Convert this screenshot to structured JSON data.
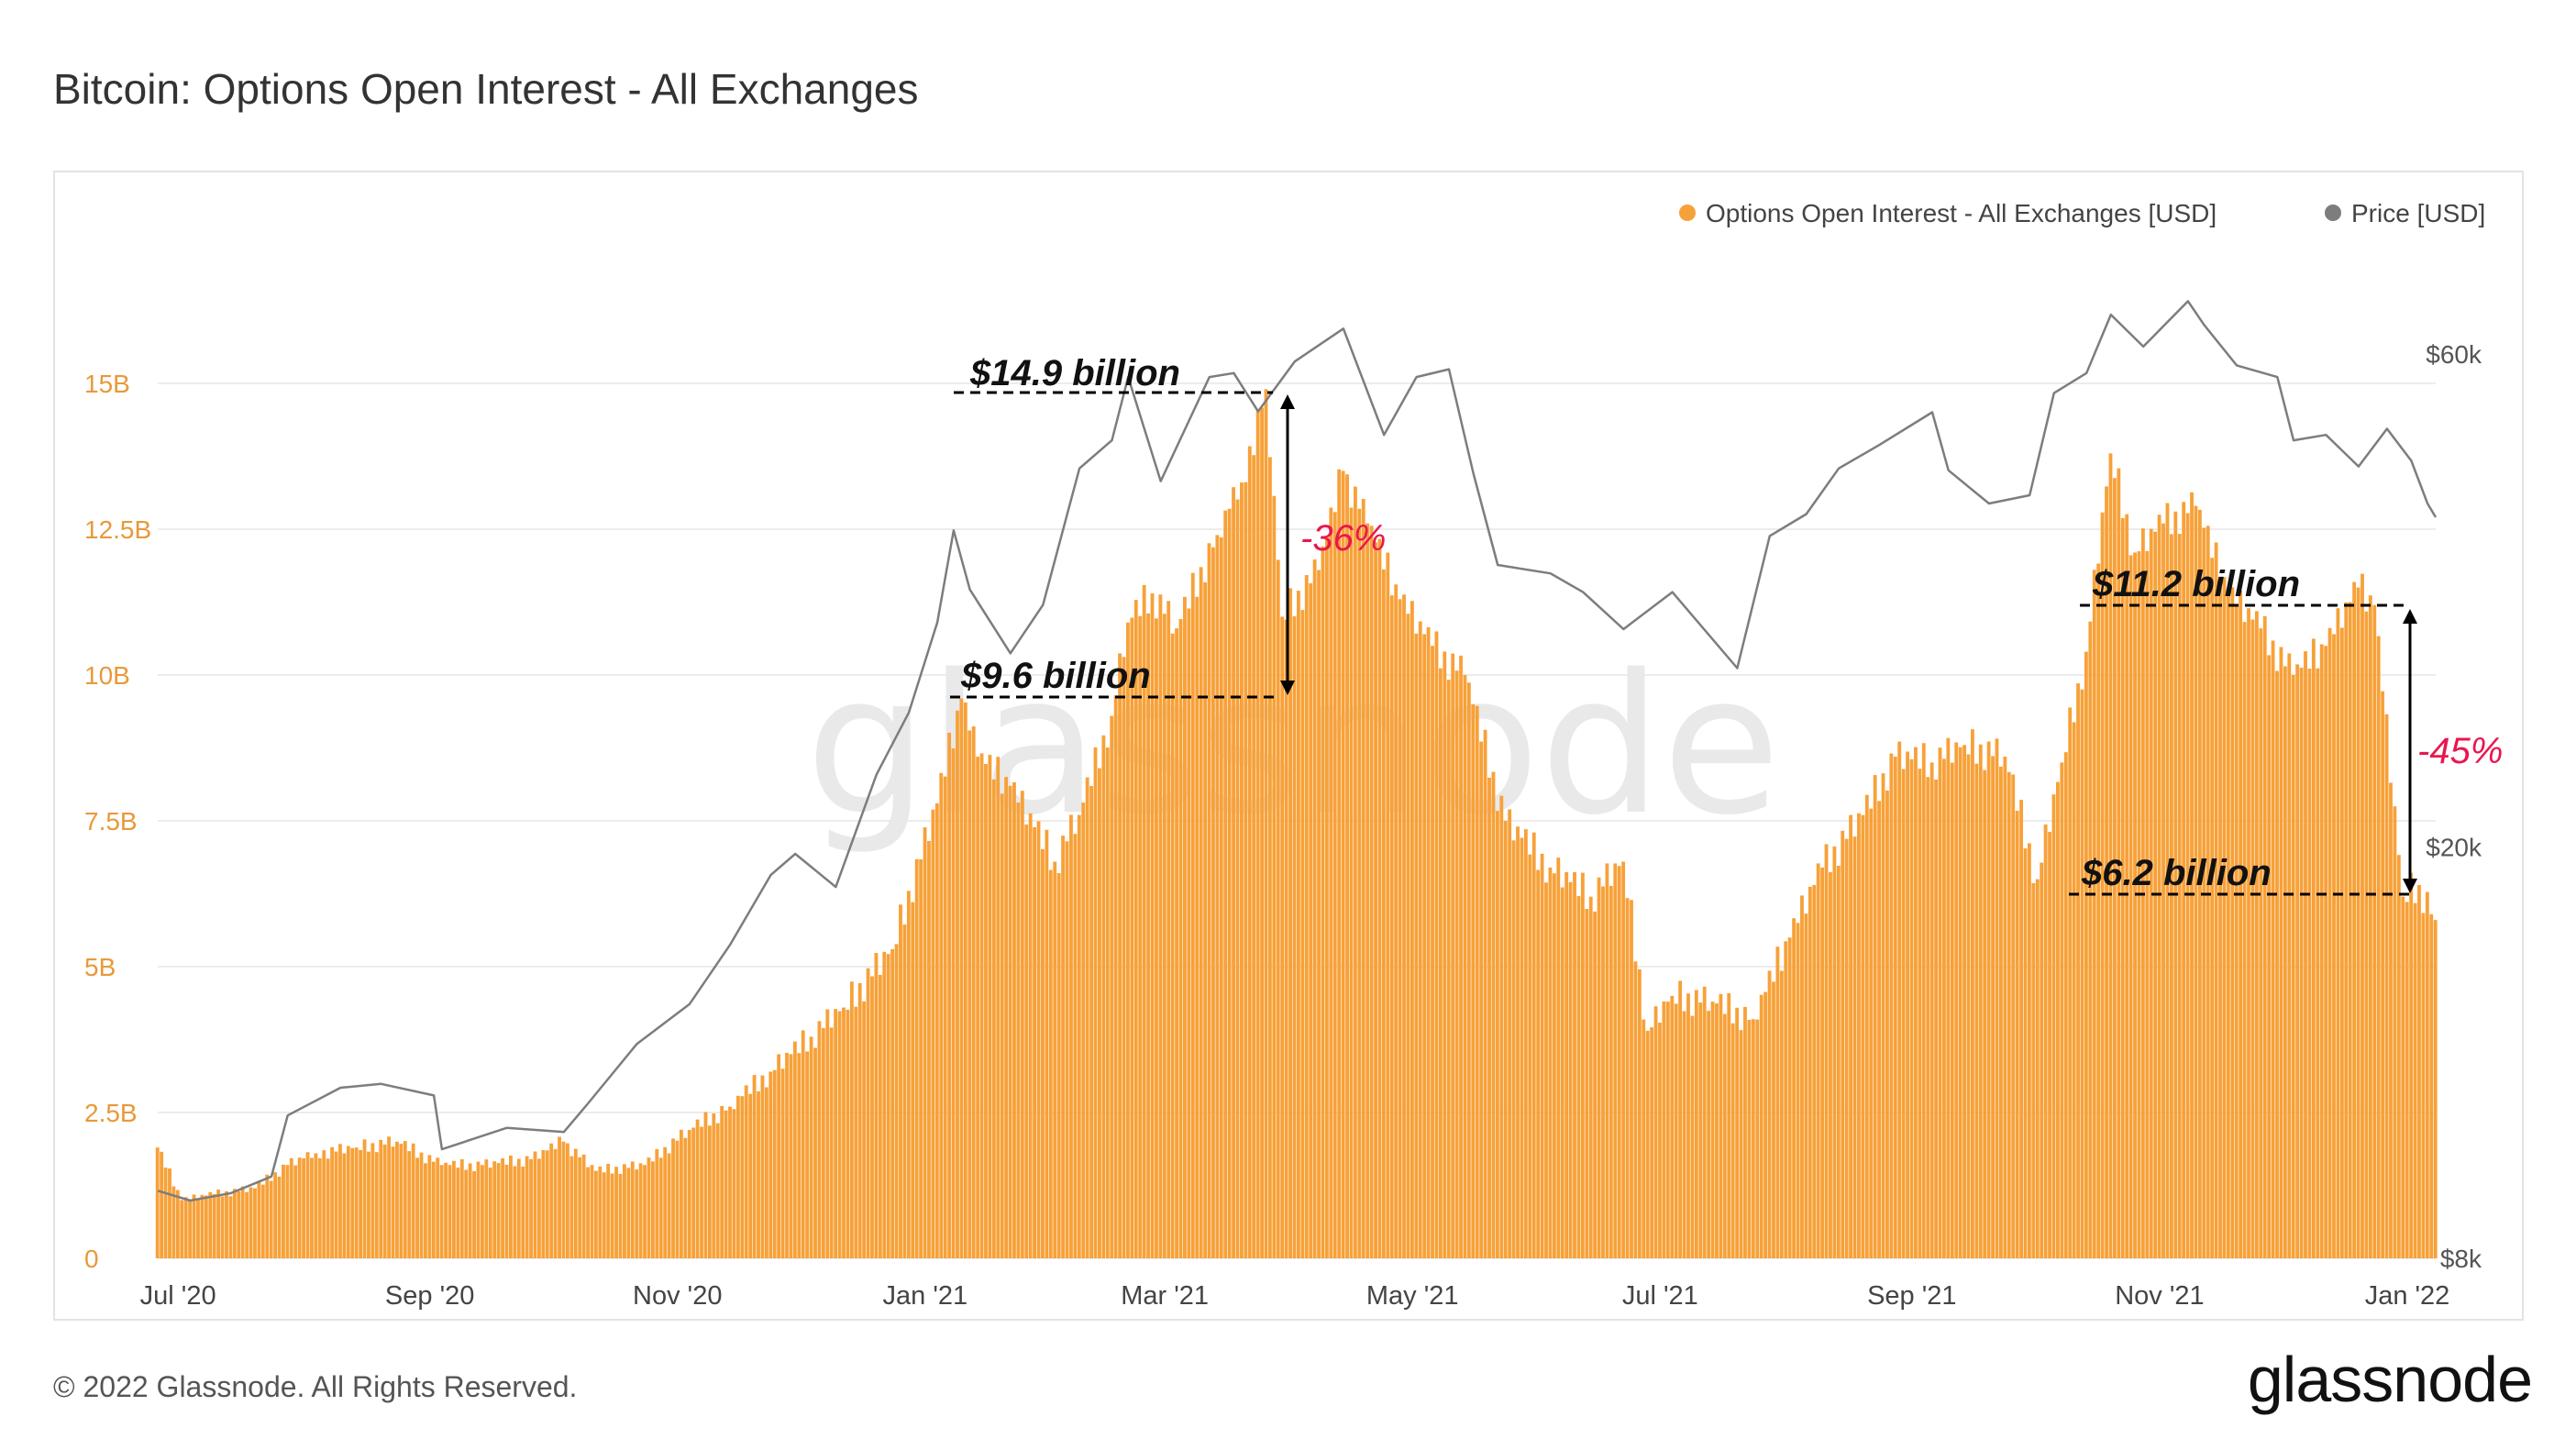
{
  "title": "Bitcoin: Options Open Interest - All Exchanges",
  "footer": {
    "copyright": "© 2022 Glassnode. All Rights Reserved.",
    "logo": "glassnode"
  },
  "watermark": "glassnode",
  "colors": {
    "bars": "#f7a139",
    "price_line": "#7d7d7d",
    "left_axis": "#e8993a",
    "pct_annotation": "#e8174f"
  },
  "chart_data": {
    "type": "bar",
    "title": "Bitcoin: Options Open Interest - All Exchanges",
    "x_range": [
      "2020-06-26",
      "2022-01-08"
    ],
    "x_ticks": [
      {
        "label": "Jul '20",
        "date": "2020-07-01"
      },
      {
        "label": "Sep '20",
        "date": "2020-09-01"
      },
      {
        "label": "Nov '20",
        "date": "2020-11-01"
      },
      {
        "label": "Jan '21",
        "date": "2021-01-01"
      },
      {
        "label": "Mar '21",
        "date": "2021-03-01"
      },
      {
        "label": "May '21",
        "date": "2021-05-01"
      },
      {
        "label": "Jul '21",
        "date": "2021-07-01"
      },
      {
        "label": "Sep '21",
        "date": "2021-09-01"
      },
      {
        "label": "Nov '21",
        "date": "2021-11-01"
      },
      {
        "label": "Jan '22",
        "date": "2022-01-01"
      }
    ],
    "y_left": {
      "ticks": [
        "0",
        "2.5B",
        "5B",
        "7.5B",
        "10B",
        "12.5B",
        "15B"
      ],
      "tick_values": [
        0,
        2.5,
        5,
        7.5,
        10,
        12.5,
        15
      ],
      "unit": "billion USD",
      "ylim": [
        0,
        15
      ]
    },
    "y_right": {
      "ticks": [
        "$8k",
        "$20k",
        "$60k"
      ],
      "tick_values": [
        8000,
        20000,
        60000
      ],
      "scale": "log"
    },
    "legend": {
      "position": "top-right",
      "entries": [
        {
          "label": "Options Open Interest - All Exchanges [USD]",
          "color": "#f7a139"
        },
        {
          "label": "Price [USD]",
          "color": "#7d7d7d"
        }
      ]
    },
    "grid": "horizontal",
    "series": [
      {
        "name": "Options Open Interest - All Exchanges [USD]",
        "kind": "bar",
        "points": [
          [
            "2020-06-26",
            1.9
          ],
          [
            "2020-07-02",
            1.0
          ],
          [
            "2020-07-10",
            1.1
          ],
          [
            "2020-07-20",
            1.2
          ],
          [
            "2020-07-28",
            1.6
          ],
          [
            "2020-08-04",
            1.8
          ],
          [
            "2020-08-14",
            1.9
          ],
          [
            "2020-08-24",
            2.0
          ],
          [
            "2020-09-04",
            1.6
          ],
          [
            "2020-09-14",
            1.6
          ],
          [
            "2020-09-26",
            1.7
          ],
          [
            "2020-10-04",
            2.0
          ],
          [
            "2020-10-12",
            1.5
          ],
          [
            "2020-10-24",
            1.6
          ],
          [
            "2020-11-04",
            2.2
          ],
          [
            "2020-11-14",
            2.6
          ],
          [
            "2020-11-24",
            3.2
          ],
          [
            "2020-12-04",
            3.8
          ],
          [
            "2020-12-12",
            4.3
          ],
          [
            "2020-12-24",
            5.3
          ],
          [
            "2021-01-04",
            7.8
          ],
          [
            "2021-01-10",
            9.6
          ],
          [
            "2021-01-14",
            8.6
          ],
          [
            "2021-01-22",
            8.1
          ],
          [
            "2021-02-02",
            6.8
          ],
          [
            "2021-02-08",
            7.6
          ],
          [
            "2021-02-16",
            9.3
          ],
          [
            "2021-02-20",
            10.9
          ],
          [
            "2021-02-26",
            11.4
          ],
          [
            "2021-03-04",
            10.8
          ],
          [
            "2021-03-14",
            12.4
          ],
          [
            "2021-03-20",
            13.3
          ],
          [
            "2021-03-26",
            14.9
          ],
          [
            "2021-03-30",
            11.0
          ],
          [
            "2021-04-08",
            11.8
          ],
          [
            "2021-04-14",
            13.5
          ],
          [
            "2021-04-20",
            12.6
          ],
          [
            "2021-04-28",
            11.3
          ],
          [
            "2021-05-06",
            10.5
          ],
          [
            "2021-05-14",
            10.0
          ],
          [
            "2021-05-24",
            7.5
          ],
          [
            "2021-06-04",
            6.7
          ],
          [
            "2021-06-14",
            6.2
          ],
          [
            "2021-06-22",
            6.8
          ],
          [
            "2021-06-28",
            3.9
          ],
          [
            "2021-07-04",
            4.5
          ],
          [
            "2021-07-14",
            4.4
          ],
          [
            "2021-07-24",
            4.1
          ],
          [
            "2021-08-02",
            5.5
          ],
          [
            "2021-08-10",
            6.7
          ],
          [
            "2021-08-20",
            7.6
          ],
          [
            "2021-08-28",
            8.6
          ],
          [
            "2021-09-06",
            8.5
          ],
          [
            "2021-09-14",
            8.8
          ],
          [
            "2021-09-24",
            8.6
          ],
          [
            "2021-10-02",
            6.5
          ],
          [
            "2021-10-08",
            8.5
          ],
          [
            "2021-10-14",
            10.4
          ],
          [
            "2021-10-20",
            13.8
          ],
          [
            "2021-10-26",
            12.1
          ],
          [
            "2021-11-02",
            12.6
          ],
          [
            "2021-11-10",
            12.9
          ],
          [
            "2021-11-18",
            11.4
          ],
          [
            "2021-11-26",
            10.8
          ],
          [
            "2021-12-04",
            10.0
          ],
          [
            "2021-12-12",
            10.5
          ],
          [
            "2021-12-20",
            11.5
          ],
          [
            "2021-12-24",
            11.2
          ],
          [
            "2021-12-31",
            6.2
          ],
          [
            "2022-01-04",
            6.4
          ],
          [
            "2022-01-08",
            5.8
          ]
        ]
      },
      {
        "name": "Price [USD]",
        "kind": "line",
        "axis": "right",
        "points": [
          [
            "2020-06-26",
            9300
          ],
          [
            "2020-07-04",
            9100
          ],
          [
            "2020-07-14",
            9250
          ],
          [
            "2020-07-24",
            9600
          ],
          [
            "2020-07-28",
            11000
          ],
          [
            "2020-08-10",
            11700
          ],
          [
            "2020-08-20",
            11800
          ],
          [
            "2020-09-02",
            11500
          ],
          [
            "2020-09-04",
            10200
          ],
          [
            "2020-09-20",
            10700
          ],
          [
            "2020-10-04",
            10600
          ],
          [
            "2020-10-10",
            11300
          ],
          [
            "2020-10-22",
            12900
          ],
          [
            "2020-11-04",
            14100
          ],
          [
            "2020-11-14",
            16100
          ],
          [
            "2020-11-24",
            18800
          ],
          [
            "2020-11-30",
            19700
          ],
          [
            "2020-12-10",
            18300
          ],
          [
            "2020-12-20",
            23500
          ],
          [
            "2020-12-28",
            27000
          ],
          [
            "2021-01-04",
            33000
          ],
          [
            "2021-01-08",
            40500
          ],
          [
            "2021-01-12",
            35500
          ],
          [
            "2021-01-22",
            30800
          ],
          [
            "2021-01-30",
            34300
          ],
          [
            "2021-02-08",
            46500
          ],
          [
            "2021-02-16",
            49500
          ],
          [
            "2021-02-20",
            57000
          ],
          [
            "2021-02-28",
            45200
          ],
          [
            "2021-03-12",
            57000
          ],
          [
            "2021-03-18",
            57500
          ],
          [
            "2021-03-24",
            52800
          ],
          [
            "2021-04-02",
            59000
          ],
          [
            "2021-04-14",
            63500
          ],
          [
            "2021-04-24",
            50100
          ],
          [
            "2021-05-02",
            57000
          ],
          [
            "2021-05-10",
            58000
          ],
          [
            "2021-05-16",
            46000
          ],
          [
            "2021-05-22",
            37500
          ],
          [
            "2021-06-04",
            36800
          ],
          [
            "2021-06-12",
            35300
          ],
          [
            "2021-06-22",
            32500
          ],
          [
            "2021-07-04",
            35300
          ],
          [
            "2021-07-20",
            29800
          ],
          [
            "2021-07-28",
            40000
          ],
          [
            "2021-08-06",
            42000
          ],
          [
            "2021-08-14",
            46500
          ],
          [
            "2021-08-24",
            49000
          ],
          [
            "2021-09-06",
            52700
          ],
          [
            "2021-09-10",
            46300
          ],
          [
            "2021-09-20",
            43000
          ],
          [
            "2021-09-30",
            43800
          ],
          [
            "2021-10-06",
            55000
          ],
          [
            "2021-10-14",
            57500
          ],
          [
            "2021-10-20",
            65500
          ],
          [
            "2021-10-28",
            61000
          ],
          [
            "2021-11-08",
            67500
          ],
          [
            "2021-11-12",
            64000
          ],
          [
            "2021-11-20",
            58500
          ],
          [
            "2021-11-30",
            57000
          ],
          [
            "2021-12-04",
            49500
          ],
          [
            "2021-12-12",
            50100
          ],
          [
            "2021-12-20",
            46700
          ],
          [
            "2021-12-27",
            50800
          ],
          [
            "2022-01-02",
            47300
          ],
          [
            "2022-01-06",
            43000
          ],
          [
            "2022-01-08",
            41700
          ]
        ]
      }
    ],
    "annotations": [
      {
        "text": "$14.9 billion",
        "date": "2021-03-26",
        "value": 14.9
      },
      {
        "text": "$9.6 billion",
        "date": "2021-01-10",
        "value": 9.6
      },
      {
        "text": "-36%",
        "kind": "percent"
      },
      {
        "text": "$11.2 billion",
        "date": "2021-12-24",
        "value": 11.2
      },
      {
        "text": "$6.2 billion",
        "date": "2021-12-31",
        "value": 6.2
      },
      {
        "text": "-45%",
        "kind": "percent"
      }
    ]
  }
}
